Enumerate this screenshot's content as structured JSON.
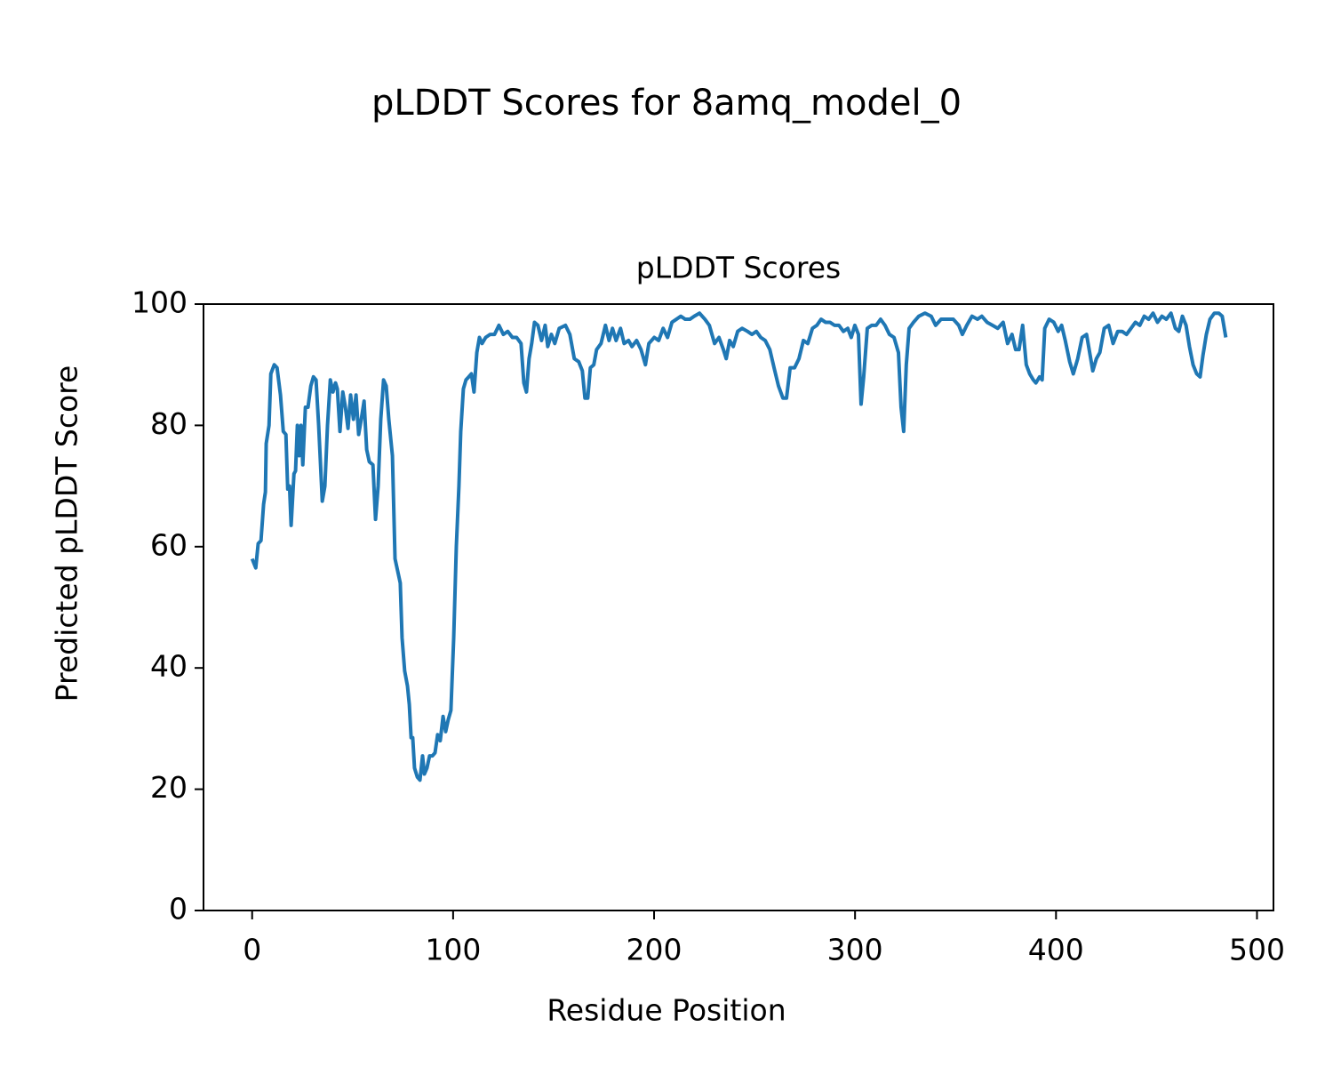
{
  "chart_data": {
    "type": "line",
    "title": "pLDDT Scores for 8amq_model_0",
    "subtitle": "pLDDT Scores",
    "x_label": "Residue Position",
    "y_label": "Predicted pLDDT Score",
    "x": [
      0,
      1.8,
      3,
      4.4,
      5.7,
      6.6,
      7,
      8.4,
      9.3,
      11,
      12.4,
      14.1,
      15.5,
      16.8,
      17.7,
      18.6,
      19.4,
      20.8,
      21.6,
      22.5,
      23.4,
      24.3,
      25.2,
      26.5,
      27.8,
      29.2,
      30.5,
      31.8,
      33.1,
      34.9,
      36.2,
      37.5,
      38.9,
      40.2,
      41.5,
      42.4,
      43.7,
      45.1,
      46.4,
      47.7,
      49,
      50.4,
      51.7,
      53,
      54.3,
      55.7,
      57,
      58.3,
      60.1,
      61.4,
      62.7,
      64,
      65.4,
      66.7,
      68,
      69.8,
      71.1,
      72.4,
      73.7,
      74.6,
      75.9,
      77.3,
      78.2,
      79.1,
      79.9,
      80.8,
      82.2,
      83.5,
      84.8,
      85.7,
      87,
      88.3,
      89.7,
      91,
      92.3,
      93.6,
      95,
      96.3,
      97.6,
      98.9,
      100.3,
      101.6,
      102.9,
      103.8,
      105.1,
      106.4,
      107.8,
      109.1,
      110.4,
      111.8,
      113.1,
      114.4,
      116.2,
      118.4,
      120.6,
      122.8,
      125,
      127.2,
      129.5,
      131.6,
      133.8,
      135.2,
      136.5,
      137.8,
      139.1,
      140.5,
      142.2,
      144,
      145.8,
      147.1,
      148.9,
      150.6,
      152.8,
      155.9,
      158.1,
      160.3,
      162.5,
      164.3,
      165.6,
      167,
      168.3,
      170,
      171.4,
      173.6,
      175.8,
      177.6,
      179.3,
      181.1,
      183.3,
      185.1,
      187.3,
      189,
      191.3,
      193.5,
      195.7,
      197.4,
      200.1,
      202.3,
      204.5,
      206.7,
      208.9,
      211.1,
      213.3,
      215.5,
      217.8,
      220,
      222.6,
      225.3,
      227.5,
      230.1,
      232.3,
      234.5,
      235.9,
      237.6,
      239.4,
      241.6,
      243.8,
      246.5,
      248.7,
      250.9,
      253.1,
      255.3,
      257.6,
      259.7,
      261.9,
      264.1,
      265.9,
      267.7,
      269.9,
      272.1,
      274.3,
      276.5,
      278.8,
      281,
      283.1,
      285.3,
      287.5,
      289.8,
      292,
      294.2,
      296.4,
      298.1,
      299.9,
      301.7,
      303,
      304.3,
      306.1,
      308.3,
      310.5,
      312.7,
      314.9,
      317.1,
      319.4,
      321.6,
      322.9,
      324.2,
      325.5,
      326.9,
      329.1,
      331.7,
      334.8,
      337.9,
      340.1,
      342.8,
      345.8,
      348.9,
      351.6,
      353.4,
      355.6,
      358.2,
      360.9,
      363.1,
      365.7,
      368.4,
      371,
      373.7,
      375.9,
      378.1,
      379.9,
      381.6,
      383.4,
      385.2,
      386.9,
      388.7,
      390,
      391.8,
      393.1,
      394.4,
      396.6,
      398.9,
      401.1,
      402.8,
      404.6,
      406.8,
      408.6,
      410.8,
      413,
      415.2,
      416.5,
      418.3,
      420.1,
      421.8,
      424,
      426.2,
      428.4,
      430.7,
      432.9,
      435.1,
      437.3,
      439.5,
      441.7,
      443.9,
      446.1,
      448.3,
      450.5,
      452.7,
      454.9,
      457.2,
      459.4,
      461.1,
      462.9,
      464.7,
      466.4,
      468.2,
      470,
      471.7,
      473.1,
      474.8,
      476.6,
      478.8,
      481,
      482.7,
      484.5
    ],
    "series": [
      {
        "name": "pLDDT",
        "color": "#1f77b4",
        "values": [
          58,
          56.5,
          60.5,
          61,
          67,
          69,
          77,
          80,
          88.5,
          90,
          89.5,
          85,
          79,
          78.5,
          69.5,
          70,
          63.5,
          72,
          72.5,
          80,
          75,
          80,
          73.5,
          83,
          83,
          86.5,
          88,
          87.5,
          80,
          67.5,
          70,
          80,
          87.5,
          85.5,
          87,
          86,
          79,
          85.5,
          83,
          79.5,
          85,
          81,
          85,
          78.5,
          81,
          84,
          76,
          74,
          73.5,
          64.5,
          70,
          81,
          87.5,
          86.5,
          81,
          75,
          58,
          56,
          54,
          45,
          39.5,
          37,
          34,
          28.5,
          28.5,
          23.5,
          22,
          21.5,
          25.5,
          22.5,
          23.5,
          25.5,
          25.5,
          26,
          29,
          28,
          32,
          29.5,
          31.5,
          33,
          45,
          60,
          70,
          79,
          86,
          87.5,
          88,
          88.5,
          85.5,
          92,
          94.5,
          93.5,
          94.5,
          95,
          95,
          96.5,
          95,
          95.5,
          94.5,
          94.5,
          93.5,
          87,
          85.5,
          91,
          93.5,
          97,
          96.5,
          94,
          96.5,
          93,
          95,
          93.5,
          96,
          96.5,
          95,
          91,
          90.5,
          89,
          84.5,
          84.5,
          89.5,
          90,
          92.5,
          93.5,
          96.5,
          94,
          96,
          94,
          96,
          93.5,
          94,
          93,
          94,
          92.5,
          90,
          93.5,
          94.5,
          94,
          96,
          94.5,
          97,
          97.5,
          98,
          97.5,
          97.5,
          98,
          98.5,
          97.5,
          96.5,
          93.5,
          94.5,
          92.5,
          91,
          94,
          93,
          95.5,
          96,
          95.5,
          95,
          95.5,
          94.5,
          94,
          92.5,
          89.5,
          86.5,
          84.5,
          84.5,
          89.5,
          89.5,
          91,
          94,
          93.5,
          96,
          96.5,
          97.5,
          97,
          97,
          96.5,
          96.5,
          95.5,
          96,
          94.5,
          96.5,
          95,
          83.5,
          88,
          96,
          96.5,
          96.5,
          97.5,
          96.5,
          95,
          94.5,
          92,
          83,
          79,
          90,
          96,
          97,
          98,
          98.5,
          98,
          96.5,
          97.5,
          97.5,
          97.5,
          96.5,
          95,
          96.5,
          98,
          97.5,
          98,
          97,
          96.5,
          96,
          97,
          93.5,
          95,
          92.5,
          92.5,
          96.5,
          90,
          88.5,
          87.5,
          87,
          88,
          87.5,
          96,
          97.5,
          97,
          95.5,
          96.5,
          94,
          90.5,
          88.5,
          91,
          94.5,
          95,
          92.5,
          89,
          91,
          92,
          96,
          96.5,
          93.5,
          95.5,
          95.5,
          95,
          96,
          97,
          96.5,
          98,
          97.5,
          98.5,
          97,
          98,
          97.5,
          98.5,
          96,
          95.5,
          98,
          96.5,
          93,
          90,
          88.5,
          88,
          91.5,
          95,
          97.5,
          98.5,
          98.5,
          98,
          94.5
        ]
      }
    ],
    "xlim": [
      -24.2,
      508.2
    ],
    "xticks": [
      0,
      100,
      200,
      300,
      400,
      500
    ],
    "ylim": [
      0,
      100
    ],
    "yticks": [
      0,
      20,
      40,
      60,
      80,
      100
    ],
    "grid": false
  }
}
